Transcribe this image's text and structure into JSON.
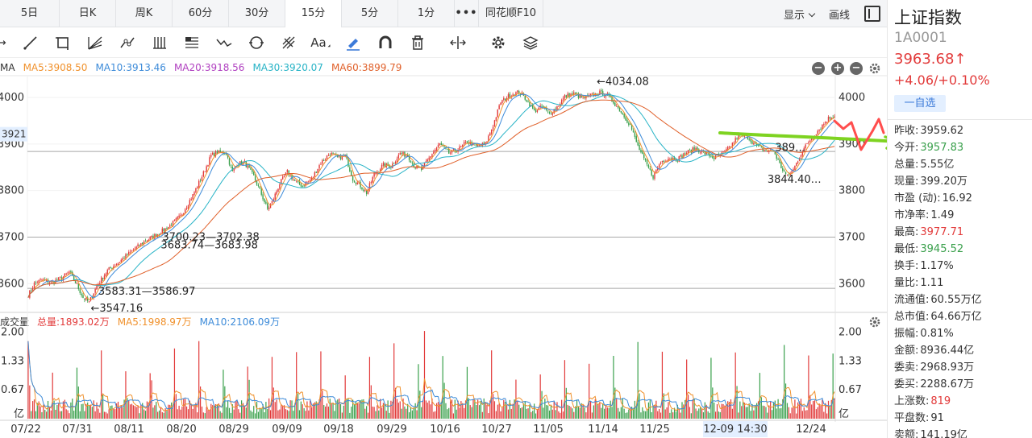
{
  "tabs": [
    {
      "label": "5日",
      "width": 74
    },
    {
      "label": "日K",
      "width": 70
    },
    {
      "label": "周K",
      "width": 70
    },
    {
      "label": "60分",
      "width": 70
    },
    {
      "label": "30分",
      "width": 70
    },
    {
      "label": "15分",
      "width": 70
    },
    {
      "label": "5分",
      "width": 70
    },
    {
      "label": "1分",
      "width": 70
    },
    {
      "label": "•••",
      "width": 30
    },
    {
      "label": "同花顺F10",
      "width": 80
    }
  ],
  "active_tab": 5,
  "tabbar_right": {
    "display": "显示",
    "draw": "画线"
  },
  "ma_legend": [
    {
      "label": "MA",
      "color": "#333333"
    },
    {
      "label": "MA5:3908.50",
      "color": "#f0912c"
    },
    {
      "label": "MA10:3913.46",
      "color": "#3d8bd9"
    },
    {
      "label": "MA20:3918.56",
      "color": "#b040c0"
    },
    {
      "label": "MA30:3920.07",
      "color": "#27b3c6"
    },
    {
      "label": "MA60:3899.79",
      "color": "#e0602a"
    }
  ],
  "vol_legend": [
    {
      "label": "成交量",
      "color": "#333333"
    },
    {
      "label": "总量:1893.02万",
      "color": "#e23a3a"
    },
    {
      "label": "MA5:1998.97万",
      "color": "#f0912c"
    },
    {
      "label": "MA10:2106.09万",
      "color": "#3d8bd9"
    }
  ],
  "colors": {
    "up": "#e23a3a",
    "down": "#3aa04c",
    "ma5": "#f0912c",
    "ma10": "#3d8bd9",
    "ma30": "#27b3c6",
    "ma60": "#e0602a"
  },
  "chart_data": {
    "type": "candlestick",
    "price_axis": {
      "ticks": [
        3600,
        3700,
        3800,
        3900,
        4000
      ],
      "range": [
        3540,
        4045
      ],
      "marker": "3921"
    },
    "volume_axis": {
      "ticks": [
        "2.00",
        "1.33",
        "0.67",
        "亿"
      ],
      "range": [
        0,
        2.05
      ]
    },
    "x_labels": [
      "07/22",
      "07/31",
      "08/11",
      "08/20",
      "08/29",
      "09/09",
      "09/18",
      "09/29",
      "10/16",
      "10/27",
      "11/05",
      "11/14",
      "11/25",
      "12-09 14:30",
      "12/24"
    ],
    "price_path": [
      [
        0,
        3575
      ],
      [
        4,
        3600
      ],
      [
        9,
        3608
      ],
      [
        15,
        3602
      ],
      [
        22,
        3612
      ],
      [
        27,
        3625
      ],
      [
        32,
        3597
      ],
      [
        36,
        3570
      ],
      [
        40,
        3560
      ],
      [
        45,
        3595
      ],
      [
        52,
        3628
      ],
      [
        60,
        3648
      ],
      [
        68,
        3670
      ],
      [
        76,
        3690
      ],
      [
        84,
        3705
      ],
      [
        92,
        3722
      ],
      [
        100,
        3745
      ],
      [
        108,
        3790
      ],
      [
        114,
        3830
      ],
      [
        120,
        3875
      ],
      [
        124,
        3882
      ],
      [
        130,
        3880
      ],
      [
        134,
        3840
      ],
      [
        137,
        3858
      ],
      [
        142,
        3860
      ],
      [
        148,
        3830
      ],
      [
        152,
        3800
      ],
      [
        157,
        3760
      ],
      [
        160,
        3775
      ],
      [
        165,
        3815
      ],
      [
        170,
        3840
      ],
      [
        175,
        3820
      ],
      [
        180,
        3810
      ],
      [
        186,
        3825
      ],
      [
        192,
        3860
      ],
      [
        198,
        3880
      ],
      [
        203,
        3870
      ],
      [
        208,
        3875
      ],
      [
        213,
        3825
      ],
      [
        218,
        3810
      ],
      [
        222,
        3795
      ],
      [
        227,
        3835
      ],
      [
        233,
        3855
      ],
      [
        238,
        3852
      ],
      [
        244,
        3880
      ],
      [
        249,
        3875
      ],
      [
        254,
        3850
      ],
      [
        258,
        3845
      ],
      [
        264,
        3875
      ],
      [
        270,
        3900
      ],
      [
        276,
        3880
      ],
      [
        282,
        3888
      ],
      [
        288,
        3905
      ],
      [
        294,
        3895
      ],
      [
        300,
        3900
      ],
      [
        305,
        3940
      ],
      [
        310,
        3990
      ],
      [
        316,
        4005
      ],
      [
        322,
        4012
      ],
      [
        327,
        3995
      ],
      [
        332,
        3970
      ],
      [
        337,
        3980
      ],
      [
        342,
        3965
      ],
      [
        347,
        3980
      ],
      [
        352,
        4002
      ],
      [
        358,
        4008
      ],
      [
        364,
        3998
      ],
      [
        370,
        4005
      ],
      [
        375,
        4010
      ],
      [
        380,
        4004
      ],
      [
        384,
        3990
      ],
      [
        390,
        3965
      ],
      [
        395,
        3940
      ],
      [
        400,
        3895
      ],
      [
        405,
        3860
      ],
      [
        410,
        3830
      ],
      [
        415,
        3862
      ],
      [
        420,
        3870
      ],
      [
        426,
        3868
      ],
      [
        432,
        3882
      ],
      [
        438,
        3890
      ],
      [
        444,
        3880
      ],
      [
        450,
        3870
      ],
      [
        455,
        3878
      ],
      [
        460,
        3892
      ],
      [
        466,
        3918
      ],
      [
        472,
        3915
      ],
      [
        478,
        3895
      ],
      [
        484,
        3885
      ],
      [
        489,
        3885
      ],
      [
        494,
        3850
      ],
      [
        498,
        3830
      ],
      [
        502,
        3845
      ],
      [
        507,
        3880
      ],
      [
        512,
        3905
      ],
      [
        517,
        3925
      ],
      [
        521,
        3940
      ],
      [
        525,
        3955
      ],
      [
        529,
        3962
      ]
    ],
    "annotations": [
      {
        "text": "←4034.08",
        "x": 373,
        "y": 4034
      },
      {
        "text": "3700.23—3702.38",
        "x": 88,
        "y": 3700
      },
      {
        "text": "3683.74—3683.98",
        "x": 87,
        "y": 3683
      },
      {
        "text": "3583.31—3586.97",
        "x": 46,
        "y": 3583
      },
      {
        "text": "←3547.16",
        "x": 41,
        "y": 3547
      },
      {
        "text": "389…",
        "x": 490,
        "y": 3892
      },
      {
        "text": "3844.40…",
        "x": 485,
        "y": 3824
      }
    ],
    "hlines": [
      3700,
      3590,
      3884
    ],
    "crosshair_label": "12-09 14:30"
  },
  "side": {
    "name": "上证指数",
    "code": "1A0001",
    "price": "3963.68↑",
    "change": "+4.06/+0.10%",
    "fav": "一自选",
    "stats": [
      {
        "label": "昨收:",
        "value": "3959.62",
        "color": "#333333"
      },
      {
        "label": "今开:",
        "value": "3957.83",
        "color": "#3aa04c"
      },
      {
        "label": "总量:",
        "value": "5.55亿",
        "color": "#333333"
      },
      {
        "label": "现量:",
        "value": "399.20万",
        "color": "#333333"
      },
      {
        "label": "市盈 (动):",
        "value": "16.92",
        "color": "#333333"
      },
      {
        "label": "市净率:",
        "value": "1.49",
        "color": "#333333"
      },
      {
        "label": "最高:",
        "value": "3977.71",
        "color": "#e23a3a"
      },
      {
        "label": "最低:",
        "value": "3945.52",
        "color": "#3aa04c"
      },
      {
        "label": "换手:",
        "value": "1.17%",
        "color": "#333333"
      },
      {
        "label": "量比:",
        "value": "1.11",
        "color": "#333333"
      },
      {
        "label": "流通值:",
        "value": "60.55万亿",
        "color": "#333333"
      },
      {
        "label": "总市值:",
        "value": "64.66万亿",
        "color": "#333333"
      },
      {
        "label": "振幅:",
        "value": "0.81%",
        "color": "#333333"
      },
      {
        "label": "金额:",
        "value": "8936.44亿",
        "color": "#333333"
      },
      {
        "label": "委卖:",
        "value": "2968.93万",
        "color": "#333333"
      },
      {
        "label": "委买:",
        "value": "2288.67万",
        "color": "#333333"
      },
      {
        "label": "上涨数:",
        "value": "819",
        "color": "#e23a3a"
      },
      {
        "label": "平盘数:",
        "value": "91",
        "color": "#333333"
      },
      {
        "label": "卖额:",
        "value": "141.19亿",
        "color": "#333333"
      }
    ]
  }
}
